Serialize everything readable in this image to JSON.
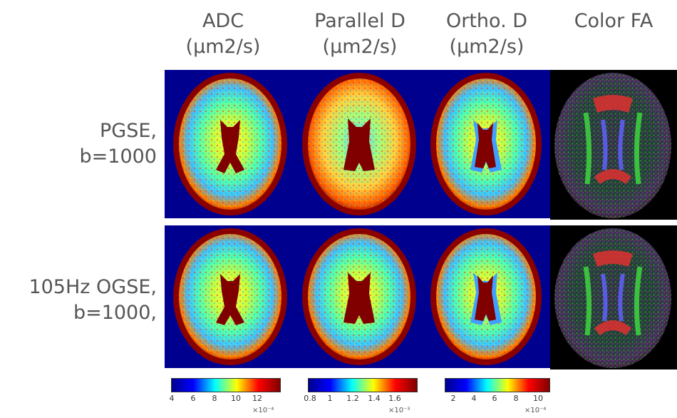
{
  "columns": [
    {
      "line1": "ADC",
      "line2": "(μm2/s)"
    },
    {
      "line1": "Parallel D",
      "line2": "(μm2/s)"
    },
    {
      "line1": "Ortho. D",
      "line2": "(μm2/s)"
    },
    {
      "line1": "Color FA",
      "line2": ""
    }
  ],
  "rows": [
    {
      "line1": "PGSE,",
      "line2": "b=1000"
    },
    {
      "line1": "105Hz OGSE,",
      "line2": "b=1000,"
    }
  ],
  "colorbars": [
    {
      "ticks": [
        "4",
        "6",
        "8",
        "10",
        "12"
      ],
      "exponent": "×10⁻⁴"
    },
    {
      "ticks": [
        "0.8",
        "1",
        "1.2",
        "1.4",
        "1.6"
      ],
      "exponent": "×10⁻³"
    },
    {
      "ticks": [
        "2",
        "4",
        "6",
        "8",
        "10"
      ],
      "exponent": "×10⁻⁴"
    }
  ],
  "colors": {
    "jet_background": "#00008f",
    "ventricle": "#800000",
    "fa_background": "#000000",
    "label_text": "#555555"
  }
}
